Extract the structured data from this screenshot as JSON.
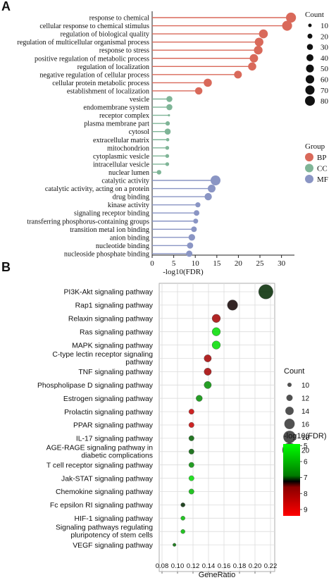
{
  "panels": {
    "a": {
      "letter": "A",
      "chart_data": {
        "type": "lollipop",
        "xlabel": "-log10(FDR)",
        "xlim": [
          0,
          33
        ],
        "xticks": [
          0,
          5,
          10,
          15,
          20,
          25,
          30
        ],
        "categories": [
          "response to chemical",
          "cellular response to chemical stimulus",
          "regulation of biological quality",
          "regulation of multicellular organismal process",
          "response to stress",
          "positive regulation of metabolic process",
          "regulation of localization",
          "negative regulation of cellular process",
          "cellular protein metabolic process",
          "establishment of localization",
          "vesicle",
          "endomembrane system",
          "receptor complex",
          "plasma membrane part",
          "cytosol",
          "extracellular matrix",
          "mitochondrion",
          "cytoplasmic vesicle",
          "intracellular vesicle",
          "nuclear lumen",
          "catalytic activity",
          "catalytic activity, acting on a protein",
          "drug binding",
          "kinase activity",
          "signaling receptor binding",
          "transferring phosphorus-containing groups",
          "transition metal ion binding",
          "anion binding",
          "nucleotide binding",
          "nucleoside phosphate binding"
        ],
        "values": [
          32.2,
          31.3,
          25.8,
          24.8,
          24.6,
          23.6,
          23.2,
          19.9,
          12.9,
          10.8,
          4.0,
          4.0,
          3.9,
          3.6,
          3.6,
          3.6,
          3.5,
          3.5,
          3.5,
          1.6,
          14.7,
          13.8,
          13.0,
          10.6,
          10.3,
          10.1,
          9.7,
          9.2,
          8.8,
          8.6
        ],
        "groups": [
          "BP",
          "BP",
          "BP",
          "BP",
          "BP",
          "BP",
          "BP",
          "BP",
          "BP",
          "BP",
          "CC",
          "CC",
          "CC",
          "CC",
          "CC",
          "CC",
          "CC",
          "CC",
          "CC",
          "CC",
          "MF",
          "MF",
          "MF",
          "MF",
          "MF",
          "MF",
          "MF",
          "MF",
          "MF",
          "MF"
        ],
        "counts": [
          83,
          82,
          65,
          62,
          62,
          58,
          55,
          50,
          55,
          45,
          30,
          30,
          4,
          16,
          30,
          9,
          12,
          12,
          12,
          17,
          81,
          50,
          44,
          22,
          26,
          20,
          26,
          36,
          32,
          32
        ],
        "size_legend": {
          "title": "Count",
          "values": [
            10,
            20,
            30,
            40,
            50,
            60,
            70,
            80
          ]
        },
        "group_legend": {
          "title": "Group",
          "items": [
            {
              "name": "BP",
              "color": "#d9695a"
            },
            {
              "name": "CC",
              "color": "#7fb597"
            },
            {
              "name": "MF",
              "color": "#8a95c4"
            }
          ]
        }
      }
    },
    "b": {
      "letter": "B",
      "chart_data": {
        "type": "scatter",
        "xlabel": "GeneRatio",
        "xlim": [
          0.08,
          0.22
        ],
        "xticks": [
          "0.08",
          "0.10",
          "0.12",
          "0.14",
          "0.16",
          "0.18",
          "0.20",
          "0.22"
        ],
        "categories": [
          "PI3K-Akt signaling pathway",
          "Rap1 signaling pathway",
          "Relaxin signaling pathway",
          "Ras signaling pathway",
          "MAPK signaling pathway",
          [
            "C-type lectin receptor signaling",
            "pathway"
          ],
          "TNF signaling pathway",
          "Phospholipase D signaling pathway",
          "Estrogen signaling pathway",
          "Prolactin signaling pathway",
          "PPAR signaling pathway",
          "IL-17 signaling pathway",
          [
            "AGE-RAGE signaling pathway in",
            "diabetic complications"
          ],
          "T cell receptor signaling pathway",
          "Jak-STAT signaling pathway",
          "Chemokine signaling pathway",
          "Fc epsilon RI signaling pathway",
          "HIF-1 signaling pathway",
          [
            "Signaling pathways regulating",
            "pluripotency of stem cells"
          ],
          "VEGF signaling pathway"
        ],
        "gene_ratio": [
          0.214,
          0.171,
          0.15,
          0.15,
          0.15,
          0.139,
          0.139,
          0.139,
          0.128,
          0.118,
          0.118,
          0.118,
          0.118,
          0.118,
          0.118,
          0.118,
          0.107,
          0.107,
          0.107,
          0.096
        ],
        "counts": [
          20,
          16,
          14,
          14,
          14,
          13,
          13,
          13,
          12,
          11,
          11,
          11,
          11,
          11,
          11,
          11,
          10,
          10,
          10,
          9
        ],
        "neg_log10_fdr": [
          6.8,
          7.3,
          8.6,
          5.2,
          5.2,
          8.6,
          8.6,
          5.9,
          5.9,
          8.9,
          8.9,
          6.3,
          6.3,
          5.9,
          5.2,
          5.5,
          6.8,
          5.5,
          5.5,
          6.2
        ],
        "size_legend": {
          "title": "Count",
          "values": [
            10,
            12,
            14,
            16,
            18,
            20
          ]
        },
        "color_legend": {
          "title": "-log10(FDR)",
          "ticks": [
            5,
            6,
            7,
            8,
            9
          ],
          "range": [
            4.9,
            9.4
          ],
          "colors": {
            "low": "#00ff00",
            "mid": "#000000",
            "high": "#ff0000"
          }
        }
      }
    }
  }
}
